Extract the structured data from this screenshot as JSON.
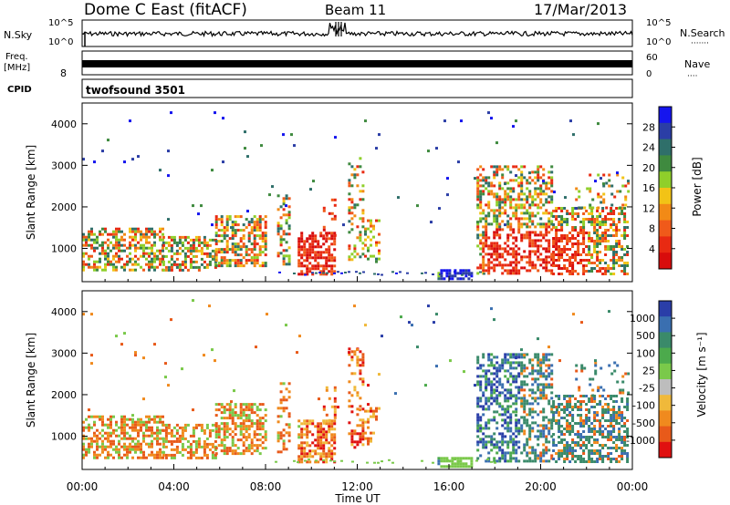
{
  "header": {
    "station": "Dome C East (fitACF)",
    "beam": "Beam 11",
    "date": "17/Mar/2013"
  },
  "noise_panel": {
    "left_label": "N.Sky",
    "left_ticks": [
      "10^5",
      "10^0"
    ],
    "right_label": "N.Search",
    "right_ticks": [
      "10^5",
      "10^0"
    ],
    "right_dots": "·······"
  },
  "freq_panel": {
    "left_label_1": "Freq.",
    "left_label_2": "[MHz]",
    "left_ticks": [
      "8"
    ],
    "right_label": "Nave",
    "right_ticks": [
      "60",
      "0"
    ],
    "right_dots": "····"
  },
  "cpid_panel": {
    "left_label": "CPID",
    "program": "twofsound 3501"
  },
  "chart_data": [
    {
      "type": "heatmap",
      "name": "power",
      "ylabel": "Slant Range [km]",
      "y_ticks": [
        "1000",
        "2000",
        "3000",
        "4000"
      ],
      "ylim": [
        200,
        4500
      ],
      "xlim_hours": [
        0,
        24
      ],
      "colorbar": {
        "label": "Power [dB]",
        "ticks": [
          "28",
          "24",
          "20",
          "16",
          "12",
          "8",
          "4"
        ],
        "colors": [
          "#1515ee",
          "#2b3ea6",
          "#2f6f6a",
          "#3f8a3f",
          "#8fcf2a",
          "#f2c316",
          "#f28a16",
          "#f05a1a",
          "#e82a12",
          "#d80c0c"
        ]
      }
    },
    {
      "type": "heatmap",
      "name": "velocity",
      "ylabel": "Slant Range [km]",
      "y_ticks": [
        "1000",
        "2000",
        "3000",
        "4000"
      ],
      "ylim": [
        200,
        4500
      ],
      "xlim_hours": [
        0,
        24
      ],
      "colorbar": {
        "label": "Velocity [m s⁻¹]",
        "ticks": [
          "1000",
          "500",
          "100",
          "25",
          "-25",
          "-100",
          "-500",
          "-1000"
        ],
        "colors": [
          "#2a3ea8",
          "#3a6fb0",
          "#3a8a6a",
          "#4caa4c",
          "#7ac94a",
          "#bdbdbd",
          "#f0b93a",
          "#f08a1e",
          "#e85a1a",
          "#e01010"
        ]
      }
    }
  ],
  "x_axis": {
    "ticks": [
      "00:00",
      "04:00",
      "08:00",
      "12:00",
      "16:00",
      "20:00",
      "00:00"
    ],
    "label": "Time UT"
  }
}
